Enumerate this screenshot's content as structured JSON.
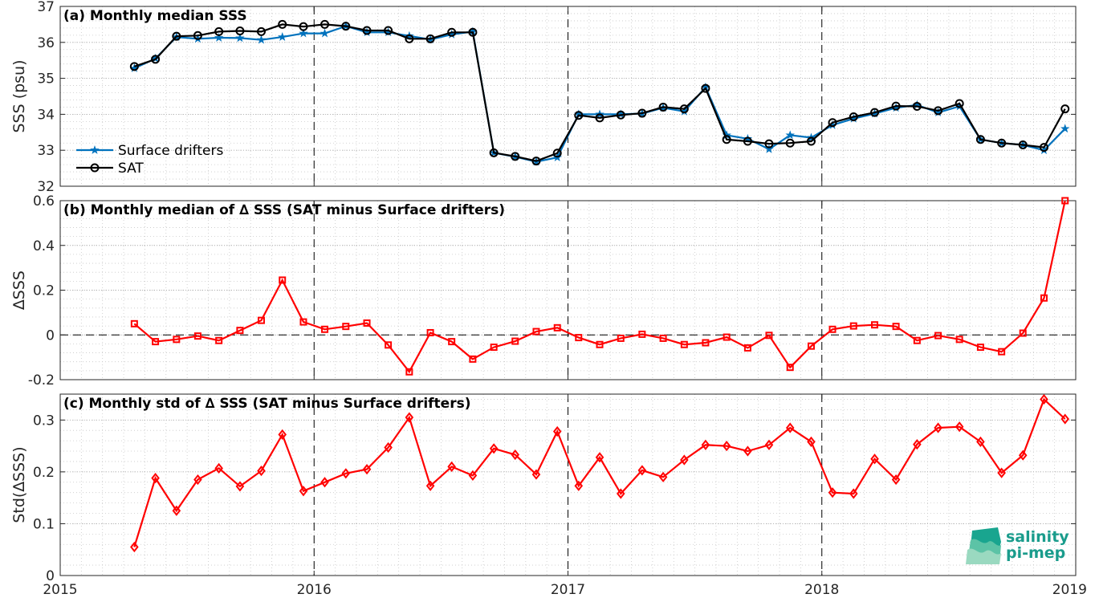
{
  "colors": {
    "drifters": "#0072bd",
    "sat": "#000000",
    "delta": "#ff0000",
    "grid": "#c8c8c8",
    "logo": "#1a9c8c"
  },
  "logo": {
    "line1": "salinity",
    "line2": "pi-mep"
  },
  "chart_data": [
    {
      "type": "line",
      "title": "(a) Monthly median SSS",
      "ylabel": "SSS (psu)",
      "xlim": [
        2015,
        2019
      ],
      "ylim": [
        32,
        37
      ],
      "yticks": [
        32,
        33,
        34,
        35,
        36,
        37
      ],
      "xticks": [
        2015,
        2016,
        2017,
        2018,
        2019
      ],
      "grid": true,
      "legend_position": "bottom-left",
      "vlines": [
        2016,
        2017,
        2018
      ],
      "series": [
        {
          "name": "Surface drifters",
          "marker": "star",
          "x": [
            2015.292,
            2015.375,
            2015.458,
            2015.542,
            2015.625,
            2015.708,
            2015.792,
            2015.875,
            2015.958,
            2016.042,
            2016.125,
            2016.208,
            2016.292,
            2016.375,
            2016.458,
            2016.542,
            2016.625,
            2016.708,
            2016.792,
            2016.875,
            2016.958,
            2017.042,
            2017.125,
            2017.208,
            2017.292,
            2017.375,
            2017.458,
            2017.542,
            2017.625,
            2017.708,
            2017.792,
            2017.875,
            2017.958,
            2018.042,
            2018.125,
            2018.208,
            2018.292,
            2018.375,
            2018.458,
            2018.542,
            2018.625,
            2018.708,
            2018.792,
            2018.875,
            2018.958
          ],
          "y": [
            35.28,
            35.55,
            36.15,
            36.1,
            36.13,
            36.12,
            36.07,
            36.15,
            36.25,
            36.25,
            36.45,
            36.28,
            36.28,
            36.18,
            36.08,
            36.22,
            36.3,
            32.93,
            32.82,
            32.68,
            32.8,
            34.0,
            34.0,
            34.0,
            34.02,
            34.18,
            34.08,
            34.75,
            33.42,
            33.32,
            33.03,
            33.42,
            33.35,
            33.7,
            33.88,
            34.02,
            34.18,
            34.26,
            34.05,
            34.22,
            33.3,
            33.2,
            33.15,
            33.0,
            33.6
          ]
        },
        {
          "name": "SAT",
          "marker": "circle",
          "x": [
            2015.292,
            2015.375,
            2015.458,
            2015.542,
            2015.625,
            2015.708,
            2015.792,
            2015.875,
            2015.958,
            2016.042,
            2016.125,
            2016.208,
            2016.292,
            2016.375,
            2016.458,
            2016.542,
            2016.625,
            2016.708,
            2016.792,
            2016.875,
            2016.958,
            2017.042,
            2017.125,
            2017.208,
            2017.292,
            2017.375,
            2017.458,
            2017.542,
            2017.625,
            2017.708,
            2017.792,
            2017.875,
            2017.958,
            2018.042,
            2018.125,
            2018.208,
            2018.292,
            2018.375,
            2018.458,
            2018.542,
            2018.625,
            2018.708,
            2018.792,
            2018.875,
            2018.958
          ],
          "y": [
            35.33,
            35.53,
            36.17,
            36.19,
            36.3,
            36.32,
            36.3,
            36.5,
            36.44,
            36.5,
            36.45,
            36.33,
            36.33,
            36.1,
            36.1,
            36.28,
            36.28,
            32.93,
            32.83,
            32.7,
            32.92,
            33.97,
            33.9,
            33.98,
            34.03,
            34.2,
            34.15,
            34.72,
            33.3,
            33.25,
            33.18,
            33.2,
            33.25,
            33.77,
            33.93,
            34.05,
            34.23,
            34.22,
            34.1,
            34.3,
            33.3,
            33.2,
            33.15,
            33.08,
            34.15
          ]
        }
      ]
    },
    {
      "type": "line",
      "title": "(b) Monthly median of ∆ SSS (SAT minus Surface drifters)",
      "ylabel": "∆SSS",
      "xlim": [
        2015,
        2019
      ],
      "ylim": [
        -0.2,
        0.6
      ],
      "yticks": [
        -0.2,
        0,
        0.2,
        0.4,
        0.6
      ],
      "ytick_labels": [
        "-0.2",
        "0",
        "0.2",
        "0.4",
        "0.6"
      ],
      "grid": true,
      "vlines": [
        2016,
        2017,
        2018
      ],
      "hline": 0,
      "series": [
        {
          "marker": "square",
          "x": [
            2015.292,
            2015.375,
            2015.458,
            2015.542,
            2015.625,
            2015.708,
            2015.792,
            2015.875,
            2015.958,
            2016.042,
            2016.125,
            2016.208,
            2016.292,
            2016.375,
            2016.458,
            2016.542,
            2016.625,
            2016.708,
            2016.792,
            2016.875,
            2016.958,
            2017.042,
            2017.125,
            2017.208,
            2017.292,
            2017.375,
            2017.458,
            2017.542,
            2017.625,
            2017.708,
            2017.792,
            2017.875,
            2017.958,
            2018.042,
            2018.125,
            2018.208,
            2018.292,
            2018.375,
            2018.458,
            2018.542,
            2018.625,
            2018.708,
            2018.792,
            2018.875,
            2018.958
          ],
          "y": [
            0.05,
            -0.03,
            -0.02,
            -0.005,
            -0.025,
            0.02,
            0.065,
            0.245,
            0.058,
            0.025,
            0.038,
            0.053,
            -0.045,
            -0.165,
            0.01,
            -0.03,
            -0.108,
            -0.055,
            -0.028,
            0.015,
            0.032,
            -0.012,
            -0.043,
            -0.015,
            0.003,
            -0.015,
            -0.043,
            -0.035,
            -0.01,
            -0.058,
            -0.002,
            -0.145,
            -0.05,
            0.025,
            0.04,
            0.045,
            0.038,
            -0.025,
            -0.003,
            -0.02,
            -0.055,
            -0.075,
            0.008,
            0.165,
            0.6
          ]
        }
      ]
    },
    {
      "type": "line",
      "title": "(c) Monthly std of ∆ SSS (SAT minus Surface drifters)",
      "ylabel": "Std(∆SSS)",
      "xlim": [
        2015,
        2019
      ],
      "ylim": [
        0,
        0.35
      ],
      "yticks": [
        0,
        0.1,
        0.2,
        0.3
      ],
      "ytick_labels": [
        "0",
        "0.1",
        "0.2",
        "0.3"
      ],
      "xtick_labels": [
        "2015",
        "2016",
        "2017",
        "2018",
        "2019"
      ],
      "grid": true,
      "vlines": [
        2016,
        2017,
        2018
      ],
      "series": [
        {
          "marker": "diamond",
          "x": [
            2015.292,
            2015.375,
            2015.458,
            2015.542,
            2015.625,
            2015.708,
            2015.792,
            2015.875,
            2015.958,
            2016.042,
            2016.125,
            2016.208,
            2016.292,
            2016.375,
            2016.458,
            2016.542,
            2016.625,
            2016.708,
            2016.792,
            2016.875,
            2016.958,
            2017.042,
            2017.125,
            2017.208,
            2017.292,
            2017.375,
            2017.458,
            2017.542,
            2017.625,
            2017.708,
            2017.792,
            2017.875,
            2017.958,
            2018.042,
            2018.125,
            2018.208,
            2018.292,
            2018.375,
            2018.458,
            2018.542,
            2018.625,
            2018.708,
            2018.792,
            2018.875,
            2018.958
          ],
          "y": [
            0.055,
            0.188,
            0.125,
            0.185,
            0.207,
            0.172,
            0.202,
            0.272,
            0.163,
            0.18,
            0.197,
            0.205,
            0.247,
            0.305,
            0.173,
            0.21,
            0.193,
            0.245,
            0.233,
            0.195,
            0.278,
            0.173,
            0.228,
            0.158,
            0.203,
            0.19,
            0.223,
            0.252,
            0.25,
            0.24,
            0.252,
            0.285,
            0.258,
            0.16,
            0.158,
            0.225,
            0.185,
            0.253,
            0.285,
            0.287,
            0.258,
            0.198,
            0.232,
            0.34,
            0.302
          ]
        }
      ]
    }
  ]
}
